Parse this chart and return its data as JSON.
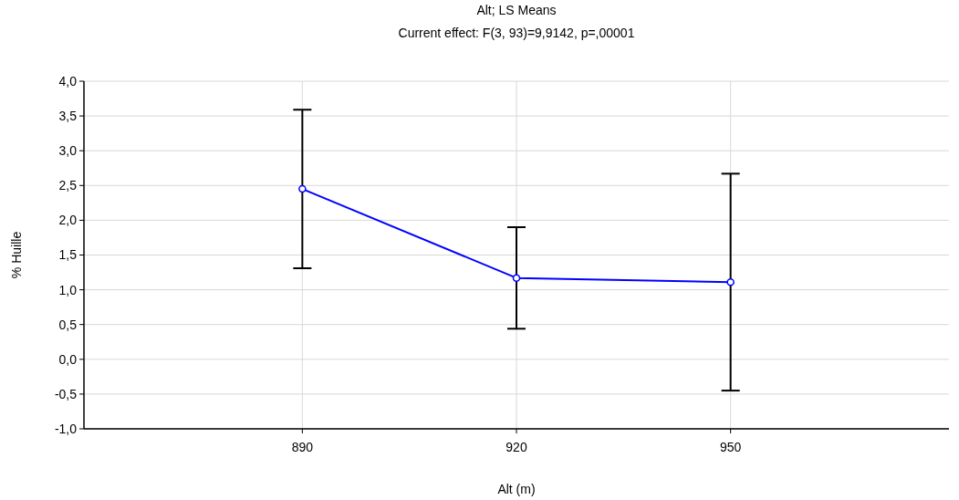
{
  "chart_data": {
    "type": "line",
    "title": "Alt; LS Means",
    "subtitle": "Current effect: F(3, 93)=9,9142, p=,00001",
    "xlabel": "Alt (m)",
    "ylabel": "% Huille",
    "categories": [
      "890",
      "920",
      "950"
    ],
    "series": [
      {
        "color": "#0000ff",
        "values": [
          2.45,
          1.17,
          1.11
        ],
        "errors": [
          1.14,
          0.73,
          1.56
        ]
      }
    ],
    "ylim": [
      -1,
      4
    ],
    "yticks": [
      {
        "value": -1,
        "label": "-1,0"
      },
      {
        "value": -0.5,
        "label": "-0,5"
      },
      {
        "value": 0,
        "label": "0,0"
      },
      {
        "value": 0.5,
        "label": "0,5"
      },
      {
        "value": 1,
        "label": "1,0"
      },
      {
        "value": 1.5,
        "label": "1,5"
      },
      {
        "value": 2,
        "label": "2,0"
      },
      {
        "value": 2.5,
        "label": "2,5"
      },
      {
        "value": 3,
        "label": "3,0"
      },
      {
        "value": 3.5,
        "label": "3,5"
      },
      {
        "value": 4,
        "label": "4,0"
      }
    ],
    "grid": true,
    "marker": "circle",
    "line_style": "solid"
  }
}
